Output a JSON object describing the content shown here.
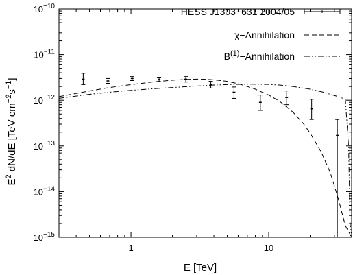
{
  "chart_data": {
    "type": "scatter",
    "title": "",
    "xlabel": "E [TeV]",
    "ylabel": "E^2 dN/dE [TeV cm^-2 s^-1]",
    "ylabel_parts": {
      "e": "E",
      "sup1": "2",
      "mid": " dN/dE [TeV cm",
      "sup2": "−2",
      "s": "s",
      "sup3": "−1",
      "close": "]"
    },
    "x_scale": "log",
    "y_scale": "log",
    "xlim": [
      0.3,
      40
    ],
    "ylim": [
      1e-15,
      1e-10
    ],
    "grid": false,
    "legend_position": "top-right",
    "x_ticks": [
      {
        "value": 1,
        "label": "1"
      },
      {
        "value": 10,
        "label": "10"
      }
    ],
    "y_ticks": [
      {
        "value": 1e-15,
        "base": "10",
        "exp": "−15"
      },
      {
        "value": 1e-14,
        "base": "10",
        "exp": "−14"
      },
      {
        "value": 1e-13,
        "base": "10",
        "exp": "−13"
      },
      {
        "value": 1e-12,
        "base": "10",
        "exp": "−12"
      },
      {
        "value": 1e-11,
        "base": "10",
        "exp": "−11"
      },
      {
        "value": 1e-10,
        "base": "10",
        "exp": "−10"
      }
    ],
    "series": [
      {
        "name": "HESS J1303−631 2004/05",
        "kind": "errorbar",
        "points": [
          {
            "x": 0.45,
            "y": 2.9e-12,
            "ylo": 2.2e-12,
            "yhi": 3.9e-12
          },
          {
            "x": 0.68,
            "y": 2.65e-12,
            "ylo": 2.35e-12,
            "yhi": 3e-12
          },
          {
            "x": 1.02,
            "y": 3e-12,
            "ylo": 2.7e-12,
            "yhi": 3.3e-12
          },
          {
            "x": 1.6,
            "y": 2.85e-12,
            "ylo": 2.55e-12,
            "yhi": 3.1e-12
          },
          {
            "x": 2.5,
            "y": 2.9e-12,
            "ylo": 2.5e-12,
            "yhi": 3.3e-12
          },
          {
            "x": 3.8,
            "y": 2.2e-12,
            "ylo": 1.85e-12,
            "yhi": 2.6e-12
          },
          {
            "x": 5.6,
            "y": 1.5e-12,
            "ylo": 1.1e-12,
            "yhi": 1.95e-12
          },
          {
            "x": 8.7,
            "y": 9e-13,
            "ylo": 6e-13,
            "yhi": 1.3e-12
          },
          {
            "x": 13.5,
            "y": 1.15e-12,
            "ylo": 8e-13,
            "yhi": 1.6e-12
          },
          {
            "x": 20.5,
            "y": 6.5e-13,
            "ylo": 3.8e-13,
            "yhi": 1.05e-12
          },
          {
            "x": 31.5,
            "y": 1.7e-13,
            "ylo": 1e-15,
            "yhi": 3.8e-13
          }
        ]
      },
      {
        "name": "χ−Annihilation",
        "kind": "line",
        "dash": "dashed",
        "x": [
          0.3,
          0.5,
          0.7,
          1.0,
          1.5,
          2.0,
          2.5,
          3.0,
          3.5,
          4.0,
          5.0,
          6.0,
          7.0,
          8.0,
          10.0,
          12.0,
          15.0,
          18.0,
          20.0,
          24.0,
          28.0,
          32.0,
          36.0,
          40.0
        ],
        "y": [
          1.2e-12,
          1.6e-12,
          1.9e-12,
          2.2e-12,
          2.55e-12,
          2.75e-12,
          2.85e-12,
          2.9e-12,
          2.88e-12,
          2.8e-12,
          2.6e-12,
          2.3e-12,
          2e-12,
          1.75e-12,
          1.3e-12,
          9.5e-13,
          5.5e-13,
          3e-13,
          1.9e-13,
          7.5e-14,
          2.6e-14,
          7e-15,
          1.8e-15,
          1e-15
        ]
      },
      {
        "name": "B⁽¹⁾−Annihilation",
        "name_parts": {
          "base": "B",
          "sup": "(1)",
          "rest": "−Annihilation"
        },
        "kind": "line",
        "dash": "dash-dot-dot",
        "x": [
          0.3,
          0.5,
          0.7,
          1.0,
          1.5,
          2.0,
          3.0,
          4.0,
          5.0,
          7.0,
          10.0,
          12.0,
          15.0,
          20.0,
          25.0,
          28.0,
          32.0,
          36.0,
          38.0,
          39.0,
          40.0
        ],
        "y": [
          1.1e-12,
          1.35e-12,
          1.5e-12,
          1.65e-12,
          1.8e-12,
          1.9e-12,
          2.05e-12,
          2.15e-12,
          2.2e-12,
          2.25e-12,
          2.22e-12,
          2.15e-12,
          2e-12,
          1.75e-12,
          1.5e-12,
          1.35e-12,
          1.2e-12,
          1.05e-12,
          1e-13,
          2e-15,
          1e-15
        ]
      }
    ]
  }
}
